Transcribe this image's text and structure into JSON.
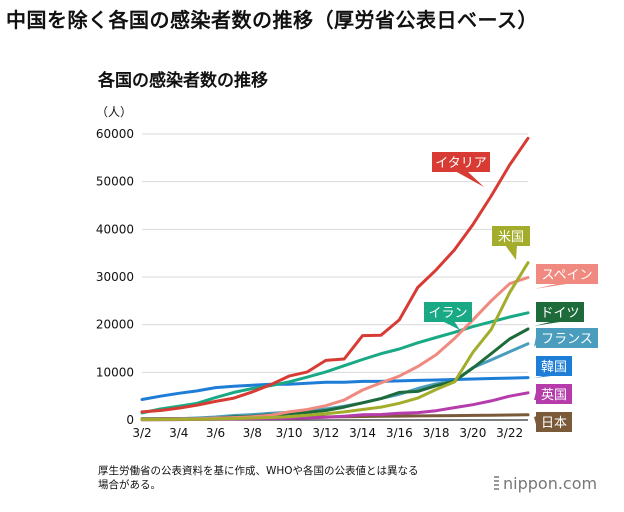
{
  "page": {
    "title": "中国を除く各国の感染者数の推移（厚労省公表日ベース）",
    "note": "厚生労働省の公表資料を基に作成、WHOや各国の公表値とは異なる場合がある。",
    "brand": "nippon.com"
  },
  "chart_data": {
    "type": "line",
    "title": "各国の感染者数の推移",
    "ylabel": "（人）",
    "xlabel": "",
    "ylim": [
      0,
      60000
    ],
    "yticks": [
      0,
      10000,
      20000,
      30000,
      40000,
      50000,
      60000
    ],
    "x": [
      "3/2",
      "3/3",
      "3/4",
      "3/5",
      "3/6",
      "3/7",
      "3/8",
      "3/9",
      "3/10",
      "3/11",
      "3/12",
      "3/13",
      "3/14",
      "3/15",
      "3/16",
      "3/17",
      "3/18",
      "3/19",
      "3/20",
      "3/21",
      "3/22",
      "3/23"
    ],
    "xtick_labels": [
      "3/2",
      "3/4",
      "3/6",
      "3/8",
      "3/10",
      "3/12",
      "3/14",
      "3/16",
      "3/18",
      "3/20",
      "3/22"
    ],
    "grid": true,
    "legend": "labels at line ends",
    "series": [
      {
        "name": "イタリア",
        "color": "#d83a34",
        "values": [
          1700,
          2000,
          2500,
          3100,
          3900,
          4600,
          5900,
          7400,
          9200,
          10100,
          12500,
          12800,
          17700,
          17800,
          21000,
          27800,
          31500,
          35700,
          41000,
          47000,
          53500,
          59100
        ]
      },
      {
        "name": "米国",
        "color": "#a3ad2b",
        "values": [
          90,
          100,
          120,
          150,
          210,
          300,
          420,
          530,
          700,
          1000,
          1300,
          1700,
          2200,
          2700,
          3500,
          4600,
          6400,
          8000,
          14200,
          19000,
          26700,
          33000
        ]
      },
      {
        "name": "スペイン",
        "color": "#f08a80",
        "values": [
          110,
          160,
          220,
          260,
          400,
          500,
          680,
          1000,
          1700,
          2200,
          3000,
          4200,
          6300,
          7800,
          9200,
          11200,
          13700,
          17100,
          21000,
          25000,
          28600,
          29900
        ]
      },
      {
        "name": "イラン",
        "color": "#1aa985",
        "values": [
          1500,
          2300,
          2900,
          3500,
          4700,
          5800,
          6600,
          7200,
          8000,
          9000,
          10100,
          11400,
          12700,
          13900,
          14900,
          16200,
          17300,
          18400,
          19600,
          20600,
          21600,
          22500
        ]
      },
      {
        "name": "ドイツ",
        "color": "#1d6b3a",
        "values": [
          130,
          160,
          200,
          260,
          400,
          640,
          800,
          1100,
          1300,
          1600,
          2000,
          2700,
          3600,
          4500,
          5800,
          6000,
          7200,
          8200,
          10900,
          13900,
          17000,
          19100
        ]
      },
      {
        "name": "フランス",
        "color": "#4a9dbd",
        "values": [
          130,
          190,
          280,
          420,
          620,
          950,
          1130,
          1400,
          1600,
          1800,
          2300,
          2900,
          3600,
          4500,
          5400,
          6600,
          7600,
          8100,
          11000,
          12600,
          14300,
          16000
        ]
      },
      {
        "name": "韓国",
        "color": "#1e7dd6",
        "values": [
          4300,
          5000,
          5600,
          6100,
          6800,
          7100,
          7300,
          7500,
          7500,
          7700,
          7900,
          7900,
          8100,
          8100,
          8200,
          8300,
          8400,
          8500,
          8600,
          8700,
          8800,
          8900
        ]
      },
      {
        "name": "英国",
        "color": "#b53caa",
        "values": [
          40,
          50,
          80,
          120,
          160,
          200,
          270,
          320,
          370,
          450,
          580,
          800,
          1100,
          1150,
          1400,
          1550,
          1950,
          2600,
          3200,
          4000,
          5000,
          5700
        ]
      },
      {
        "name": "日本",
        "color": "#7a5a38",
        "values": [
          270,
          290,
          310,
          340,
          390,
          430,
          500,
          540,
          580,
          620,
          660,
          700,
          730,
          780,
          820,
          870,
          900,
          920,
          960,
          1010,
          1050,
          1100
        ]
      }
    ]
  }
}
